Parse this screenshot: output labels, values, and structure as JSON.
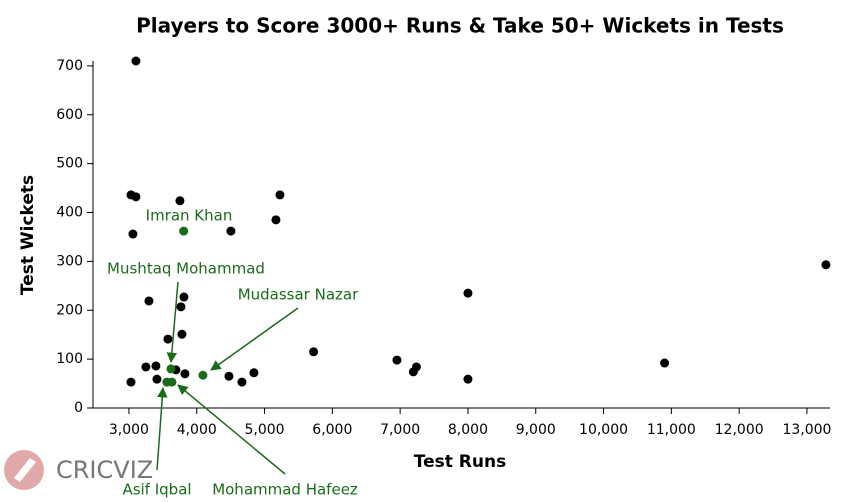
{
  "chart_data": {
    "type": "scatter",
    "title": "Players to Score 3000+ Runs & Take 50+ Wickets in Tests",
    "x_label": "Test Runs",
    "y_label": "Test Wickets",
    "logo": "CRICVIZ",
    "xlim": [
      2470,
      13340
    ],
    "ylim": [
      0,
      710
    ],
    "xticks": [
      {
        "value": 3000,
        "label": "3,000"
      },
      {
        "value": 4000,
        "label": "4,000"
      },
      {
        "value": 5000,
        "label": "5,000"
      },
      {
        "value": 6000,
        "label": "6,000"
      },
      {
        "value": 7000,
        "label": "7,000"
      },
      {
        "value": 8000,
        "label": "8,000"
      },
      {
        "value": 9000,
        "label": "9,000"
      },
      {
        "value": 10000,
        "label": "10,000"
      },
      {
        "value": 11000,
        "label": "11,000"
      },
      {
        "value": 12000,
        "label": "12,000"
      },
      {
        "value": 13000,
        "label": "13,000"
      }
    ],
    "yticks": [
      0,
      100,
      200,
      300,
      400,
      500,
      600,
      700
    ],
    "points": {
      "color": "#000000",
      "x": [
        3103,
        3030,
        3103,
        3752,
        5227,
        5168,
        4504,
        3059,
        3295,
        3811,
        3767,
        3782,
        3575,
        8000,
        13280,
        5723,
        6953,
        7240,
        7195,
        8000,
        10900,
        3250,
        3398,
        3030,
        3413,
        3693,
        3826,
        4475,
        4667,
        4844
      ],
      "y": [
        710,
        436,
        432,
        424,
        436,
        385,
        362,
        356,
        219,
        227,
        207,
        151,
        141,
        235,
        293,
        115,
        98,
        84,
        74,
        59,
        92,
        84,
        86,
        53,
        59,
        78,
        70,
        65,
        53,
        72
      ]
    },
    "highlights": {
      "color": "#1a6b1a",
      "labels": [
        "Imran Khan",
        "Mushtaq Mohammad",
        "Mudassar Nazar",
        "Asif Iqbal",
        "Mohammad Hafeez"
      ],
      "x": [
        3807,
        3620,
        4091,
        3560,
        3634
      ],
      "y": [
        362,
        80,
        67,
        53,
        53
      ]
    }
  }
}
